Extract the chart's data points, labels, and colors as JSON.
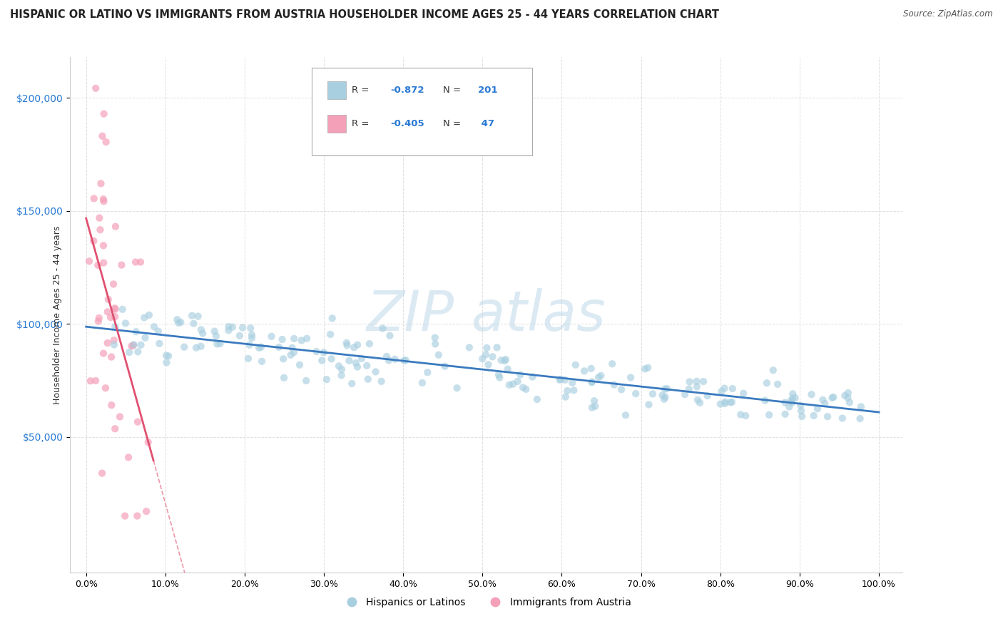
{
  "title": "HISPANIC OR LATINO VS IMMIGRANTS FROM AUSTRIA HOUSEHOLDER INCOME AGES 25 - 44 YEARS CORRELATION CHART",
  "source": "Source: ZipAtlas.com",
  "ylabel": "Householder Income Ages 25 - 44 years",
  "x_tick_labels": [
    "0.0%",
    "10.0%",
    "20.0%",
    "30.0%",
    "40.0%",
    "50.0%",
    "60.0%",
    "70.0%",
    "80.0%",
    "90.0%",
    "100.0%"
  ],
  "x_tick_values": [
    0,
    10,
    20,
    30,
    40,
    50,
    60,
    70,
    80,
    90,
    100
  ],
  "y_tick_labels": [
    "$50,000",
    "$100,000",
    "$150,000",
    "$200,000"
  ],
  "y_tick_values": [
    50000,
    100000,
    150000,
    200000
  ],
  "blue_R": -0.872,
  "blue_N": 201,
  "pink_R": -0.405,
  "pink_N": 47,
  "blue_color": "#a8cfe0",
  "pink_color": "#f4a0b8",
  "blue_line_color": "#3a7abf",
  "pink_line_color": "#e05070",
  "legend_blue_label": "Hispanics or Latinos",
  "legend_pink_label": "Immigrants from Austria",
  "background_color": "#ffffff",
  "plot_bg_color": "#ffffff",
  "title_fontsize": 10.5,
  "axis_label_fontsize": 9,
  "tick_fontsize": 9,
  "xlim": [
    -2,
    103
  ],
  "ylim": [
    -10000,
    218000
  ],
  "blue_scatter_seed": 42,
  "pink_scatter_seed": 123
}
